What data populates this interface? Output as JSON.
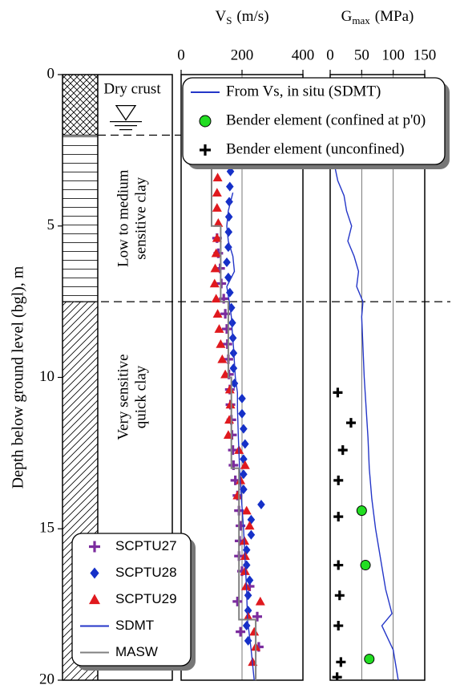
{
  "chart_data": [
    {
      "type": "soil-column",
      "ylabel": "Depth below ground level (bgl), m",
      "ylim": [
        0,
        20
      ],
      "yticks": [
        0,
        5,
        10,
        15,
        20
      ],
      "water_table": 1.5,
      "layers": [
        {
          "label": [
            "Dry crust"
          ],
          "top": 0,
          "bottom": 2,
          "pattern": "crosshatch"
        },
        {
          "label": [
            "Low to medium",
            "sensitive clay"
          ],
          "top": 2,
          "bottom": 7.5,
          "pattern": "horizontal"
        },
        {
          "label": [
            "Very sensitive",
            "quick clay"
          ],
          "top": 7.5,
          "bottom": 20,
          "pattern": "diagonal"
        }
      ]
    },
    {
      "type": "scatter",
      "title": "V",
      "title_sub": "S",
      "title_unit": "(m/s)",
      "xlim": [
        0,
        400
      ],
      "xticks": [
        0,
        200,
        400
      ],
      "grid": true,
      "legend": "lower left",
      "series": [
        {
          "name": "SCPTU27",
          "color": "#7b2c9e",
          "marker": "plus",
          "y": [
            5.4,
            5.9,
            6.4,
            6.9,
            7.4,
            7.9,
            8.4,
            8.9,
            9.4,
            9.9,
            10.4,
            10.9,
            11.4,
            11.9,
            12.4,
            12.9,
            13.4,
            13.9,
            14.4,
            14.9,
            15.4,
            15.9,
            16.4,
            16.9,
            17.4,
            17.9,
            18.4,
            18.9
          ],
          "x": [
            118,
            122,
            128,
            132,
            140,
            145,
            150,
            152,
            155,
            157,
            160,
            162,
            165,
            167,
            170,
            172,
            178,
            185,
            190,
            195,
            192,
            190,
            200,
            225,
            185,
            250,
            195,
            255
          ]
        },
        {
          "name": "SCPTU28",
          "color": "#1530c8",
          "marker": "diamond",
          "y": [
            3.2,
            3.7,
            4.2,
            4.7,
            5.2,
            5.7,
            6.2,
            6.7,
            7.2,
            7.7,
            8.2,
            8.7,
            9.2,
            9.7,
            10.2,
            10.7,
            11.2,
            11.7,
            12.2,
            12.7,
            13.2,
            13.7,
            14.2,
            14.7,
            15.2,
            15.7,
            16.2,
            16.7,
            17.2,
            17.7,
            18.2,
            18.7
          ],
          "x": [
            162,
            160,
            158,
            157,
            156,
            155,
            150,
            155,
            160,
            165,
            168,
            170,
            172,
            172,
            175,
            200,
            200,
            205,
            210,
            205,
            205,
            205,
            263,
            230,
            230,
            215,
            215,
            225,
            220,
            220,
            215,
            220
          ]
        },
        {
          "name": "SCPTU29",
          "color": "#e0191e",
          "marker": "triangle",
          "y": [
            3.4,
            3.9,
            4.4,
            4.9,
            5.4,
            5.9,
            6.4,
            6.9,
            7.4,
            7.9,
            8.4,
            8.9,
            9.4,
            9.9,
            10.4,
            10.9,
            11.4,
            11.9,
            12.4,
            12.9,
            13.4,
            13.9,
            14.4,
            14.9,
            15.4,
            15.9,
            16.4,
            16.9,
            17.4,
            17.9,
            18.4,
            18.9,
            19.4
          ],
          "x": [
            120,
            118,
            118,
            122,
            118,
            115,
            112,
            110,
            115,
            120,
            125,
            130,
            135,
            145,
            160,
            162,
            158,
            155,
            190,
            210,
            195,
            185,
            215,
            225,
            208,
            210,
            210,
            213,
            260,
            220,
            240,
            245,
            235
          ]
        },
        {
          "name": "SDMT",
          "color": "#2436c8",
          "marker": "line",
          "y": [
            3.9,
            4.5,
            5.0,
            5.5,
            6.0,
            6.5,
            7.0,
            7.5,
            8.0,
            8.5,
            9.0,
            10.0,
            10.5,
            11.0,
            12.0,
            13.0,
            14.0,
            15.0,
            16.0,
            17.0,
            18.0,
            19.0,
            20.0
          ],
          "x": [
            170,
            155,
            150,
            155,
            170,
            175,
            150,
            158,
            165,
            168,
            172,
            178,
            185,
            185,
            188,
            192,
            198,
            205,
            210,
            215,
            218,
            230,
            240
          ]
        },
        {
          "name": "MASW",
          "color": "#808080",
          "marker": "line",
          "y": [
            3.0,
            5.0,
            5.0,
            7.5,
            7.5,
            10.0,
            10.0,
            13.0,
            13.0,
            18.0,
            18.0,
            20.0
          ],
          "x": [
            100,
            100,
            130,
            130,
            155,
            155,
            165,
            165,
            190,
            190,
            245,
            245
          ]
        }
      ]
    },
    {
      "type": "scatter",
      "title": "G",
      "title_sub": "max",
      "title_unit": "(MPa)",
      "xlim": [
        0,
        150
      ],
      "xticks": [
        0,
        50,
        100,
        150
      ],
      "grid": true,
      "legend": "upper right",
      "series": [
        {
          "name": "From Vs, in situ (SDMT)",
          "color": "#2436c8",
          "marker": "line",
          "y": [
            2.8,
            3.5,
            4.0,
            4.5,
            5.0,
            5.5,
            6.0,
            6.5,
            7.0,
            7.5,
            8.0,
            9.0,
            10.0,
            11.0,
            12.0,
            13.0,
            14.0,
            15.0,
            16.0,
            17.0,
            17.8,
            18.2,
            19.0,
            20.0
          ],
          "x": [
            5,
            12,
            22,
            26,
            34,
            28,
            38,
            45,
            42,
            52,
            50,
            52,
            54,
            57,
            60,
            62,
            66,
            72,
            80,
            88,
            98,
            82,
            100,
            108
          ]
        },
        {
          "name": "Bender element (confined at p'0)",
          "color": "#22dd22",
          "marker": "circle",
          "y": [
            14.4,
            16.2,
            19.3
          ],
          "x": [
            50,
            56,
            62
          ]
        },
        {
          "name": "Bender element (unconfined)",
          "color": "#000000",
          "marker": "plus",
          "y": [
            10.5,
            11.5,
            12.4,
            13.4,
            14.6,
            16.2,
            17.2,
            18.2,
            19.4,
            19.9
          ],
          "x": [
            12,
            33,
            20,
            13,
            13,
            13,
            15,
            13,
            17,
            11
          ]
        }
      ]
    }
  ]
}
